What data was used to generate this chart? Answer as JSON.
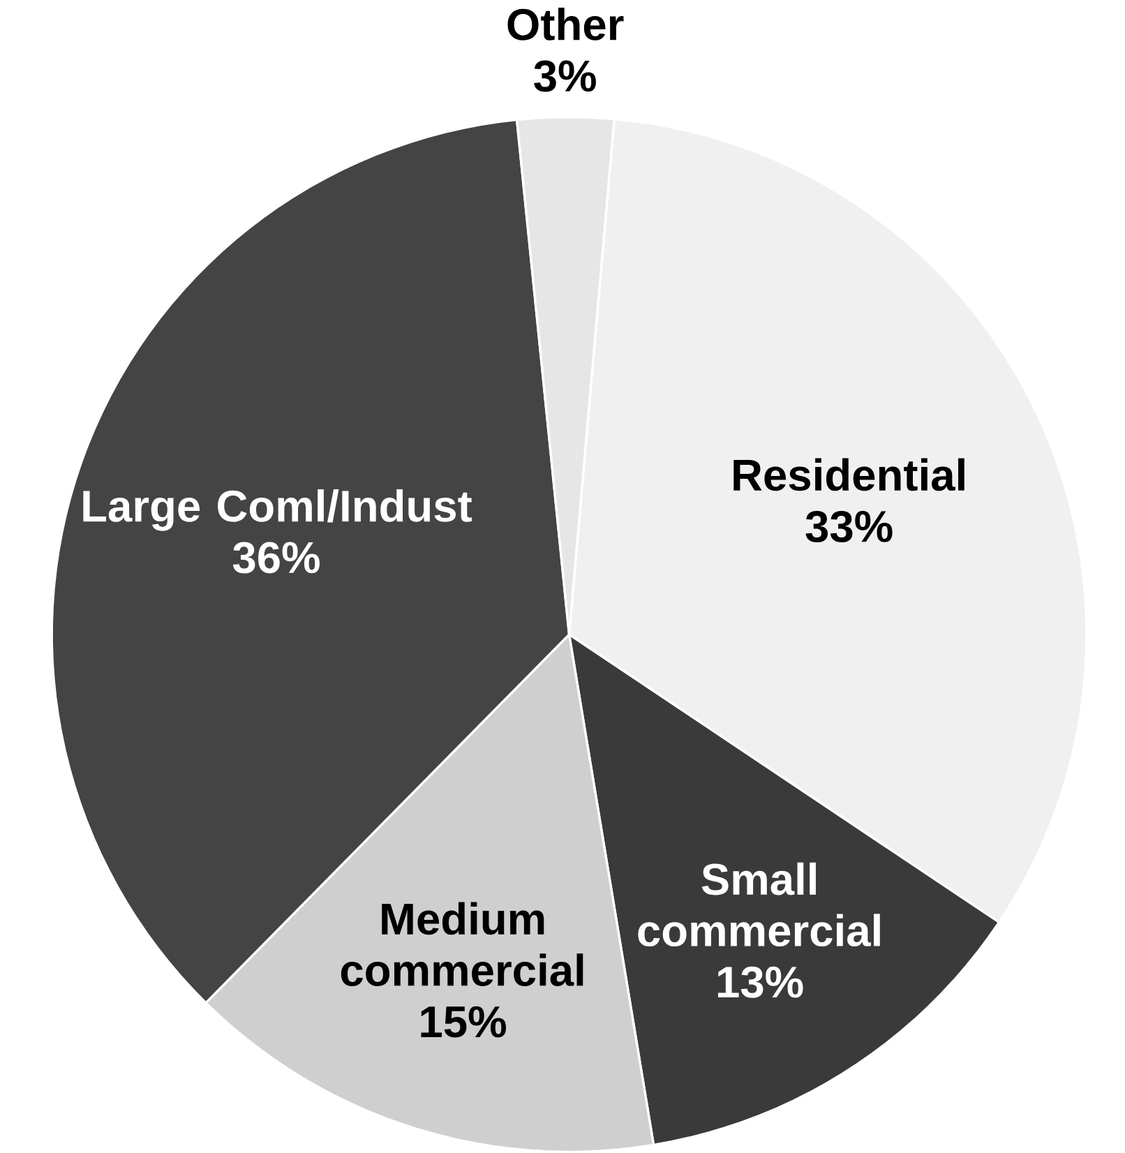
{
  "chart_data": {
    "type": "pie",
    "categories": [
      "Residential",
      "Small commercial",
      "Medium commercial",
      "Large Coml/Indust",
      "Other"
    ],
    "values": [
      33,
      13,
      15,
      36,
      3
    ],
    "colors": [
      "#f0f0f0",
      "#3a3a3a",
      "#cfcfcf",
      "#444444",
      "#e6e6e6"
    ],
    "value_labels": [
      "33%",
      "13%",
      "15%",
      "36%",
      "3%"
    ]
  }
}
